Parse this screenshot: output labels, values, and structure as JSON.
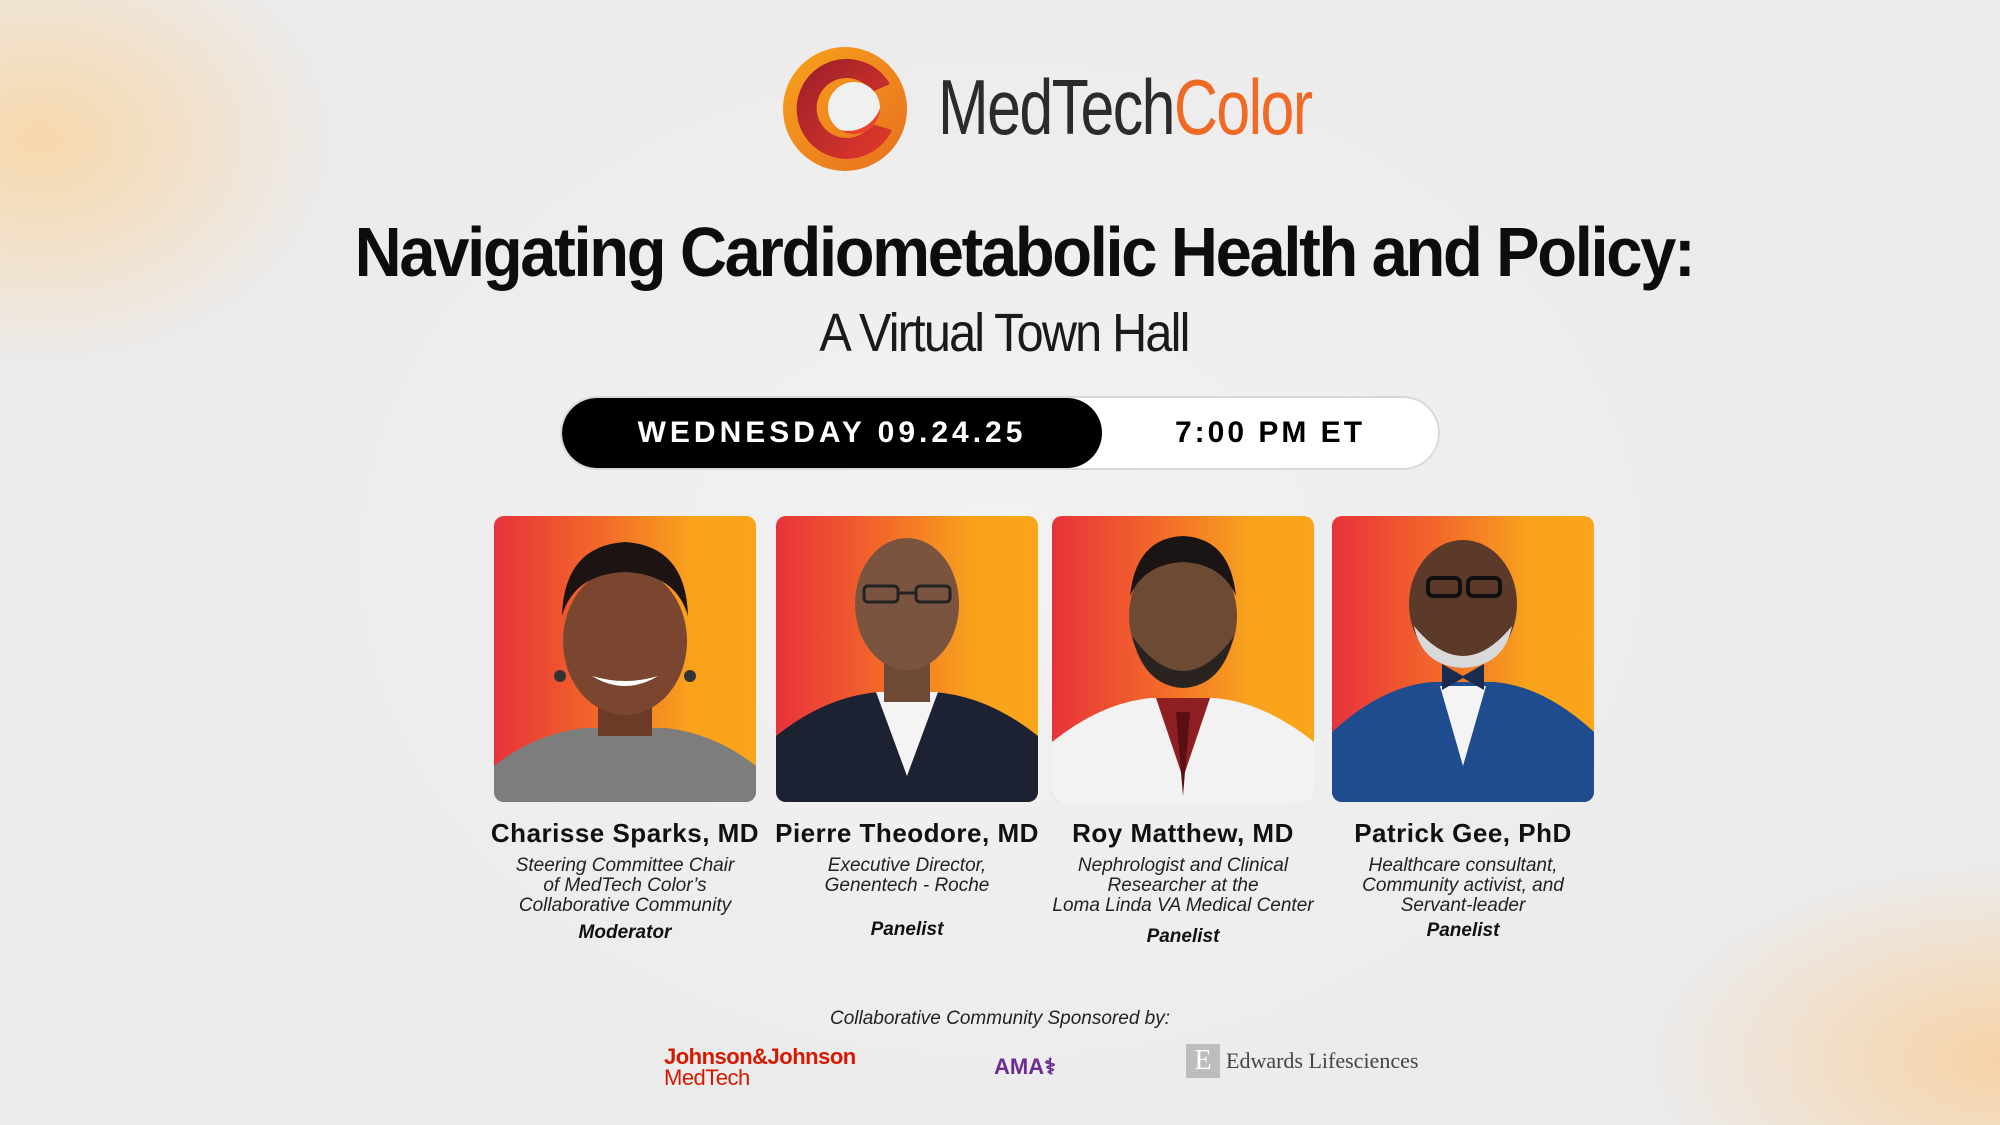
{
  "brand": {
    "name_part1": "MedTech",
    "name_part2": "Color",
    "accent_orange": "#ef6a24",
    "accent_red": "#c8262e"
  },
  "event": {
    "title": "Navigating Cardiometabolic Health and Policy:",
    "subtitle": "A Virtual Town Hall",
    "date_label": "WEDNESDAY 09.24.25",
    "time_label": "7:00 PM ET"
  },
  "speakers": [
    {
      "name": "Charisse Sparks, MD",
      "description": "Steering Committee Chair\nof MedTech Color’s\nCollaborative Community",
      "role": "Moderator"
    },
    {
      "name": "Pierre Theodore, MD",
      "description": "Executive Director,\nGenentech - Roche",
      "role": "Panelist"
    },
    {
      "name": "Roy Matthew, MD",
      "description": "Nephrologist and Clinical\nResearcher at the\nLoma Linda VA Medical Center",
      "role": "Panelist"
    },
    {
      "name": "Patrick Gee, PhD",
      "description": "Healthcare consultant,\nCommunity activist, and\nServant-leader",
      "role": "Panelist"
    }
  ],
  "sponsors": {
    "label": "Collaborative Community Sponsored by:",
    "jnj_line1": "Johnson&Johnson",
    "jnj_line2": "MedTech",
    "ama": "AMA",
    "edwards_letter": "E",
    "edwards": "Edwards Lifesciences"
  }
}
